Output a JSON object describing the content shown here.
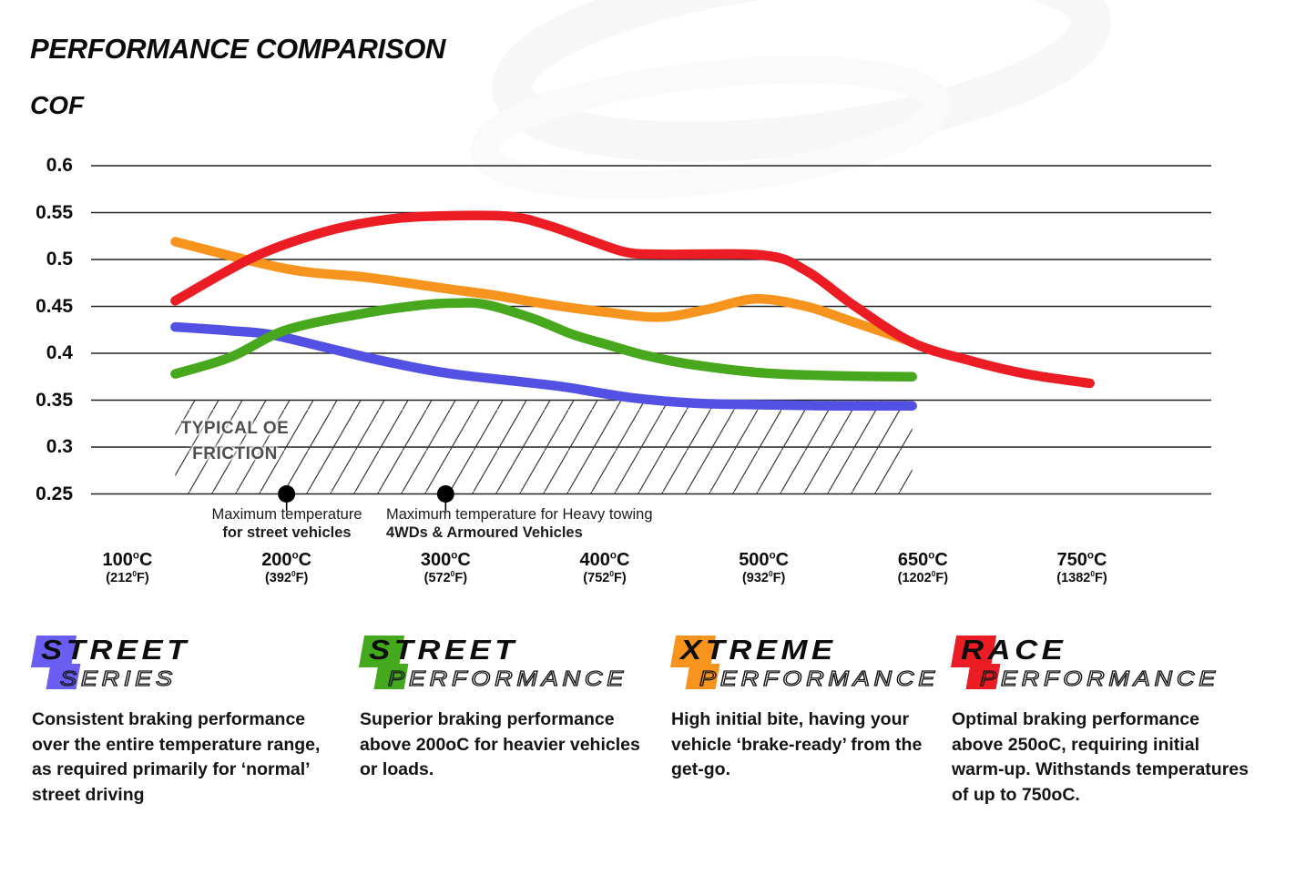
{
  "title": "PERFORMANCE COMPARISON",
  "chart_data": {
    "type": "line",
    "title": "PERFORMANCE COMPARISON",
    "ylabel": "COF",
    "xlabel": "",
    "ylim": [
      0.25,
      0.6
    ],
    "grid": true,
    "y_ticks": [
      "0.6",
      "0.55",
      "0.5",
      "0.45",
      "0.4",
      "0.35",
      "0.3",
      "0.25"
    ],
    "y_tick_values": [
      0.6,
      0.55,
      0.5,
      0.45,
      0.4,
      0.35,
      0.3,
      0.25
    ],
    "x_ticks": [
      {
        "c": "100",
        "f": "212"
      },
      {
        "c": "200",
        "f": "392"
      },
      {
        "c": "300",
        "f": "572"
      },
      {
        "c": "400",
        "f": "752"
      },
      {
        "c": "500",
        "f": "932"
      },
      {
        "c": "650",
        "f": "1202"
      },
      {
        "c": "750",
        "f": "1382"
      }
    ],
    "series": [
      {
        "name": "Street Series",
        "color": "#5351e3",
        "points": [
          [
            130,
            0.428
          ],
          [
            165,
            0.424
          ],
          [
            190,
            0.42
          ],
          [
            225,
            0.406
          ],
          [
            260,
            0.392
          ],
          [
            300,
            0.379
          ],
          [
            340,
            0.371
          ],
          [
            375,
            0.364
          ],
          [
            415,
            0.353
          ],
          [
            455,
            0.347
          ],
          [
            500,
            0.345
          ],
          [
            570,
            0.344
          ],
          [
            640,
            0.344
          ]
        ]
      },
      {
        "name": "Street Performance",
        "color": "#47a81e",
        "points": [
          [
            130,
            0.378
          ],
          [
            165,
            0.396
          ],
          [
            200,
            0.425
          ],
          [
            250,
            0.443
          ],
          [
            285,
            0.4515
          ],
          [
            305,
            0.4535
          ],
          [
            325,
            0.452
          ],
          [
            355,
            0.437
          ],
          [
            380,
            0.42
          ],
          [
            400,
            0.41
          ],
          [
            425,
            0.398
          ],
          [
            455,
            0.388
          ],
          [
            500,
            0.379
          ],
          [
            570,
            0.376
          ],
          [
            640,
            0.375
          ]
        ]
      },
      {
        "name": "Xtreme Performance",
        "color": "#f7941e",
        "points": [
          [
            130,
            0.519
          ],
          [
            200,
            0.49
          ],
          [
            250,
            0.481
          ],
          [
            300,
            0.469
          ],
          [
            330,
            0.462
          ],
          [
            365,
            0.452
          ],
          [
            400,
            0.444
          ],
          [
            435,
            0.4385
          ],
          [
            465,
            0.447
          ],
          [
            495,
            0.458
          ],
          [
            540,
            0.45
          ],
          [
            580,
            0.435
          ],
          [
            640,
            0.412
          ]
        ]
      },
      {
        "name": "Race Performance",
        "color": "#ec1c24",
        "points": [
          [
            130,
            0.456
          ],
          [
            180,
            0.503
          ],
          [
            225,
            0.53
          ],
          [
            265,
            0.543
          ],
          [
            300,
            0.5465
          ],
          [
            340,
            0.546
          ],
          [
            365,
            0.536
          ],
          [
            390,
            0.521
          ],
          [
            413,
            0.508
          ],
          [
            435,
            0.5055
          ],
          [
            500,
            0.5045
          ],
          [
            540,
            0.488
          ],
          [
            585,
            0.451
          ],
          [
            640,
            0.4115
          ],
          [
            680,
            0.392
          ],
          [
            715,
            0.378
          ],
          [
            755,
            0.368
          ]
        ]
      }
    ],
    "oe_region": {
      "label_line1": "TYPICAL OE",
      "label_line2": "FRICTION",
      "temp_range_c": [
        130,
        640
      ],
      "cof_range": [
        0.25,
        0.35
      ]
    },
    "annotations": [
      {
        "temp_c": 200,
        "cof": 0.25,
        "line1": "Maximum temperature",
        "line2": "for street vehicles"
      },
      {
        "temp_c": 300,
        "cof": 0.25,
        "line1": "Maximum temperature for Heavy towing",
        "line2": "4WDs & Armoured Vehicles"
      }
    ]
  },
  "legend": [
    {
      "word1": "STREET",
      "word2": "SERIES",
      "color": "#5351e3",
      "badge_color": "#6a5ef2",
      "description": "Consistent braking performance over the entire temperature range, as required primarily for ‘normal’ street driving"
    },
    {
      "word1": "STREET",
      "word2": "PERFORMANCE",
      "color": "#47a81e",
      "badge_color": "#44a91d",
      "description": "Superior braking performance above 200oC for heavier vehicles or loads."
    },
    {
      "word1": "XTREME",
      "word2": "PERFORMANCE",
      "color": "#f7941e",
      "badge_color": "#f7941e",
      "description": "High initial bite, having your vehicle ‘brake-ready’ from the get-go."
    },
    {
      "word1": "RACE",
      "word2": "PERFORMANCE",
      "color": "#ec1c24",
      "badge_color": "#ec1c24",
      "description": "Optimal braking performance above 250oC, requiring initial warm-up. Withstands temperatures of up to 750oC."
    }
  ]
}
